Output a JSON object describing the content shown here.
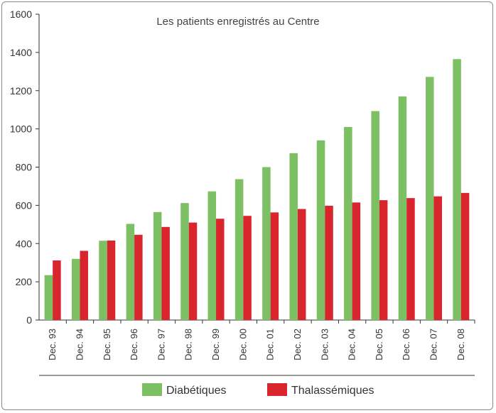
{
  "chart_data": {
    "type": "bar",
    "title": "Les patients enregistrés au Centre",
    "xlabel": "",
    "ylabel": "",
    "ylim": [
      0,
      1600
    ],
    "yticks": [
      0,
      200,
      400,
      600,
      800,
      1000,
      1200,
      1400,
      1600
    ],
    "categories": [
      "Dec. 93",
      "Dec. 94",
      "Dec. 95",
      "Dec. 96",
      "Dec. 97",
      "Dec. 98",
      "Dec. 99",
      "Dec. 00",
      "Dec. 01",
      "Dec. 02",
      "Dec. 03",
      "Dec. 04",
      "Dec. 05",
      "Dec. 06",
      "Dec. 07",
      "Dec. 08"
    ],
    "series": [
      {
        "name": "Diabétiques",
        "color": "#7dbf63",
        "values": [
          235,
          320,
          415,
          503,
          565,
          612,
          673,
          737,
          800,
          873,
          940,
          1010,
          1093,
          1170,
          1272,
          1365
        ]
      },
      {
        "name": "Thalassémiques",
        "color": "#d9262e",
        "values": [
          312,
          362,
          416,
          446,
          487,
          510,
          530,
          545,
          563,
          581,
          598,
          615,
          627,
          638,
          647,
          665
        ]
      }
    ],
    "legend_position": "bottom",
    "grid": false
  }
}
